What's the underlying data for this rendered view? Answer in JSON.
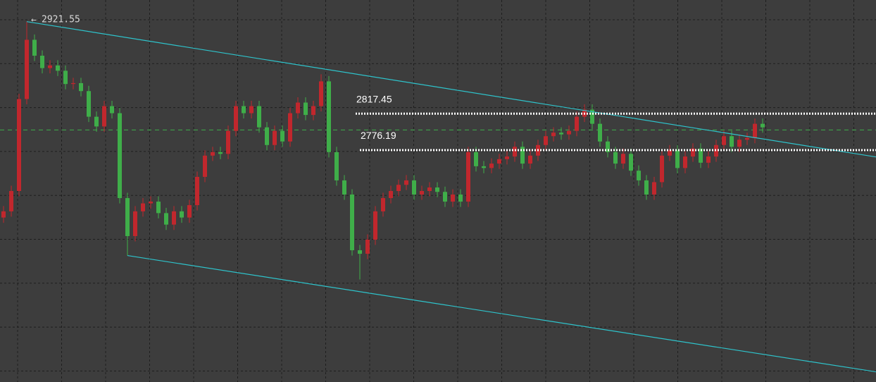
{
  "chart_data": {
    "type": "candlestick",
    "ylim": [
      2514,
      2946
    ],
    "grid": true,
    "up_color": "#c1272d",
    "down_color": "#3fae49",
    "open": [
      2700,
      2707,
      2730,
      2834,
      2901,
      2883,
      2869,
      2872,
      2866,
      2851,
      2852,
      2843,
      2814,
      2803,
      2826,
      2818,
      2722,
      2679,
      2707,
      2716,
      2718,
      2705,
      2692,
      2707,
      2700,
      2714,
      2746,
      2770,
      2774,
      2772,
      2798,
      2826,
      2818,
      2826,
      2802,
      2782,
      2798,
      2786,
      2818,
      2830,
      2816,
      2826,
      2854,
      2774,
      2742,
      2726,
      2663,
      2659,
      2675,
      2707,
      2722,
      2730,
      2737,
      2742,
      2726,
      2730,
      2734,
      2729,
      2718,
      2726,
      2718,
      2774,
      2758,
      2756,
      2761,
      2766,
      2769,
      2780,
      2761,
      2770,
      2782,
      2792,
      2796,
      2794,
      2798,
      2814,
      2822,
      2806,
      2786,
      2774,
      2761,
      2772,
      2753,
      2742,
      2726,
      2740,
      2770,
      2776,
      2756,
      2769,
      2778,
      2762,
      2769,
      2782,
      2792,
      2780,
      2788,
      2790,
      2806
    ],
    "high": [
      2713,
      2736,
      2840,
      2921.55,
      2907,
      2889,
      2878,
      2878,
      2872,
      2858,
      2858,
      2849,
      2820,
      2832,
      2832,
      2824,
      2728,
      2713,
      2722,
      2724,
      2724,
      2711,
      2713,
      2713,
      2720,
      2752,
      2776,
      2780,
      2780,
      2804,
      2832,
      2832,
      2832,
      2832,
      2808,
      2804,
      2804,
      2824,
      2836,
      2836,
      2832,
      2862,
      2860,
      2780,
      2748,
      2732,
      2669,
      2681,
      2713,
      2728,
      2736,
      2743,
      2748,
      2748,
      2736,
      2740,
      2740,
      2735,
      2732,
      2732,
      2780,
      2780,
      2764,
      2767,
      2772,
      2775,
      2786,
      2786,
      2776,
      2788,
      2798,
      2802,
      2802,
      2804,
      2820,
      2828,
      2828,
      2812,
      2792,
      2780,
      2778,
      2778,
      2759,
      2748,
      2746,
      2776,
      2782,
      2782,
      2775,
      2784,
      2784,
      2775,
      2788,
      2798,
      2798,
      2794,
      2796,
      2812,
      2812
    ],
    "low": [
      2694,
      2701,
      2724,
      2828,
      2877,
      2863,
      2863,
      2860,
      2845,
      2845,
      2837,
      2808,
      2797,
      2797,
      2812,
      2716,
      2657,
      2673,
      2701,
      2710,
      2699,
      2686,
      2686,
      2694,
      2694,
      2708,
      2740,
      2764,
      2766,
      2766,
      2792,
      2812,
      2812,
      2796,
      2776,
      2776,
      2780,
      2780,
      2812,
      2810,
      2810,
      2820,
      2768,
      2736,
      2720,
      2657,
      2630,
      2653,
      2669,
      2701,
      2716,
      2724,
      2731,
      2720,
      2720,
      2724,
      2723,
      2712,
      2712,
      2712,
      2712,
      2752,
      2750,
      2750,
      2755,
      2760,
      2763,
      2755,
      2755,
      2764,
      2776,
      2786,
      2788,
      2788,
      2792,
      2808,
      2800,
      2780,
      2768,
      2755,
      2755,
      2747,
      2736,
      2720,
      2720,
      2734,
      2764,
      2750,
      2750,
      2763,
      2756,
      2756,
      2763,
      2776,
      2774,
      2774,
      2782,
      2784,
      2796
    ],
    "close": [
      2707,
      2730,
      2834,
      2901,
      2883,
      2869,
      2872,
      2866,
      2851,
      2852,
      2843,
      2814,
      2803,
      2826,
      2818,
      2722,
      2679,
      2707,
      2716,
      2718,
      2705,
      2692,
      2707,
      2700,
      2714,
      2746,
      2770,
      2774,
      2772,
      2798,
      2826,
      2818,
      2826,
      2802,
      2782,
      2798,
      2786,
      2818,
      2830,
      2816,
      2826,
      2854,
      2774,
      2742,
      2726,
      2663,
      2659,
      2675,
      2707,
      2722,
      2730,
      2737,
      2742,
      2726,
      2730,
      2734,
      2729,
      2718,
      2726,
      2718,
      2774,
      2758,
      2756,
      2761,
      2766,
      2769,
      2780,
      2761,
      2770,
      2782,
      2792,
      2796,
      2794,
      2798,
      2814,
      2822,
      2806,
      2786,
      2774,
      2761,
      2772,
      2753,
      2742,
      2726,
      2740,
      2770,
      2776,
      2756,
      2769,
      2778,
      2762,
      2769,
      2782,
      2792,
      2780,
      2788,
      2790,
      2806,
      2802
    ],
    "max_label": 2921.55,
    "levels": [
      2817.45,
      2776.19
    ],
    "current_price": 2799,
    "trendlines": [
      {
        "x": [
          3,
          113
        ],
        "y": [
          2921.55,
          2768
        ],
        "color": "#2ec4cc"
      },
      {
        "x": [
          16,
          113
        ],
        "y": [
          2657,
          2525
        ],
        "color": "#2ec4cc"
      }
    ]
  }
}
